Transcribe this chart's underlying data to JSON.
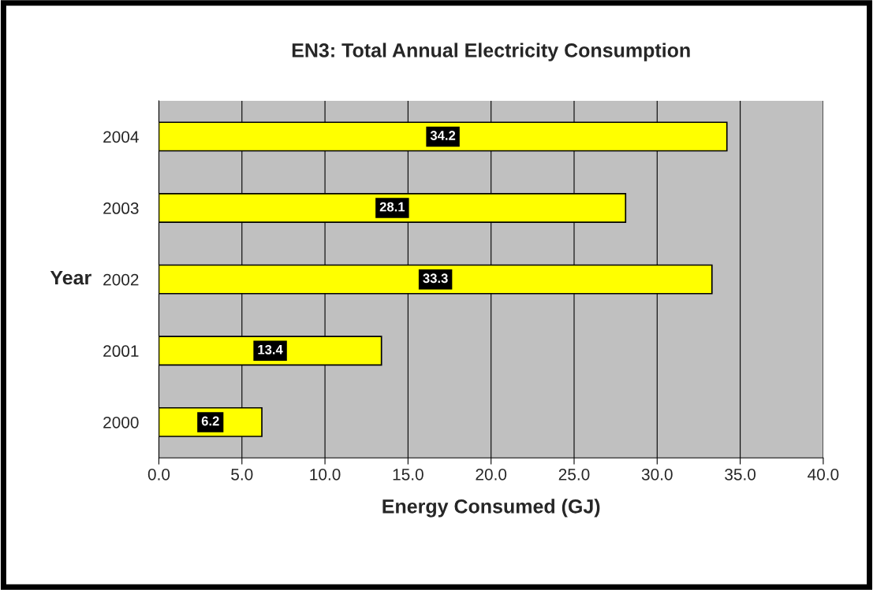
{
  "chart_data": {
    "type": "bar",
    "orientation": "horizontal",
    "title": "EN3: Total Annual Electricity Consumption",
    "xlabel": "Energy Consumed (GJ)",
    "ylabel": "Year",
    "categories": [
      "2004",
      "2003",
      "2002",
      "2001",
      "2000"
    ],
    "values": [
      34.2,
      28.1,
      33.3,
      13.4,
      6.2
    ],
    "color": "#ffff00",
    "xlim": [
      0,
      40
    ],
    "xticks": [
      {
        "value": 0,
        "label": "0.0"
      },
      {
        "value": 5,
        "label": "5.0"
      },
      {
        "value": 10,
        "label": "10.0"
      },
      {
        "value": 15,
        "label": "15.0"
      },
      {
        "value": 20,
        "label": "20.0"
      },
      {
        "value": 25,
        "label": "25.0"
      },
      {
        "value": 30,
        "label": "30.0"
      },
      {
        "value": 35,
        "label": "35.0"
      },
      {
        "value": 40,
        "label": "40.0"
      }
    ],
    "grid": "x",
    "data_labels": true,
    "legend": false
  }
}
